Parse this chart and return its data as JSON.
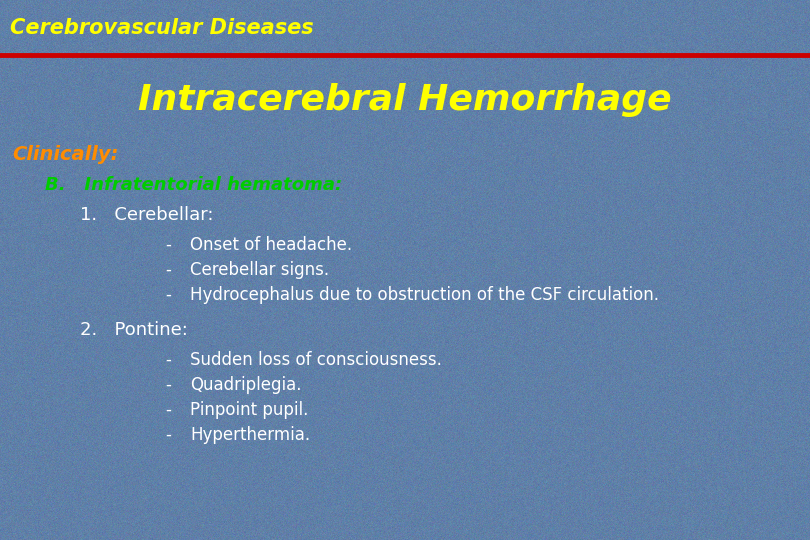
{
  "title": "Cerebrovascular Diseases",
  "title_color": "#FFFF00",
  "title_fontsize": 15,
  "header_line_color": "#CC0000",
  "main_heading": "Intracerebral Hemorrhage",
  "main_heading_color": "#FFFF00",
  "main_heading_fontsize": 26,
  "clinically_label": "Clinically:",
  "clinically_color": "#FF8C00",
  "clinically_fontsize": 14,
  "section_b_label": "B.   Infratentorial hematoma:",
  "section_b_color": "#00CC00",
  "section_b_fontsize": 13,
  "item1_label": "1.   Cerebellar:",
  "item1_color": "#FFFFFF",
  "item1_fontsize": 13,
  "item2_label": "2.   Pontine:",
  "item2_color": "#FFFFFF",
  "item2_fontsize": 13,
  "bullets1": [
    "Onset of headache.",
    "Cerebellar signs.",
    "Hydrocephalus due to obstruction of the CSF circulation."
  ],
  "bullets2": [
    "Sudden loss of consciousness.",
    "Quadriplegia.",
    "Pinpoint pupil.",
    "Hyperthermia."
  ],
  "bullet_color": "#FFFFFF",
  "bullet_fontsize": 12,
  "bg_color": "#6080a8"
}
